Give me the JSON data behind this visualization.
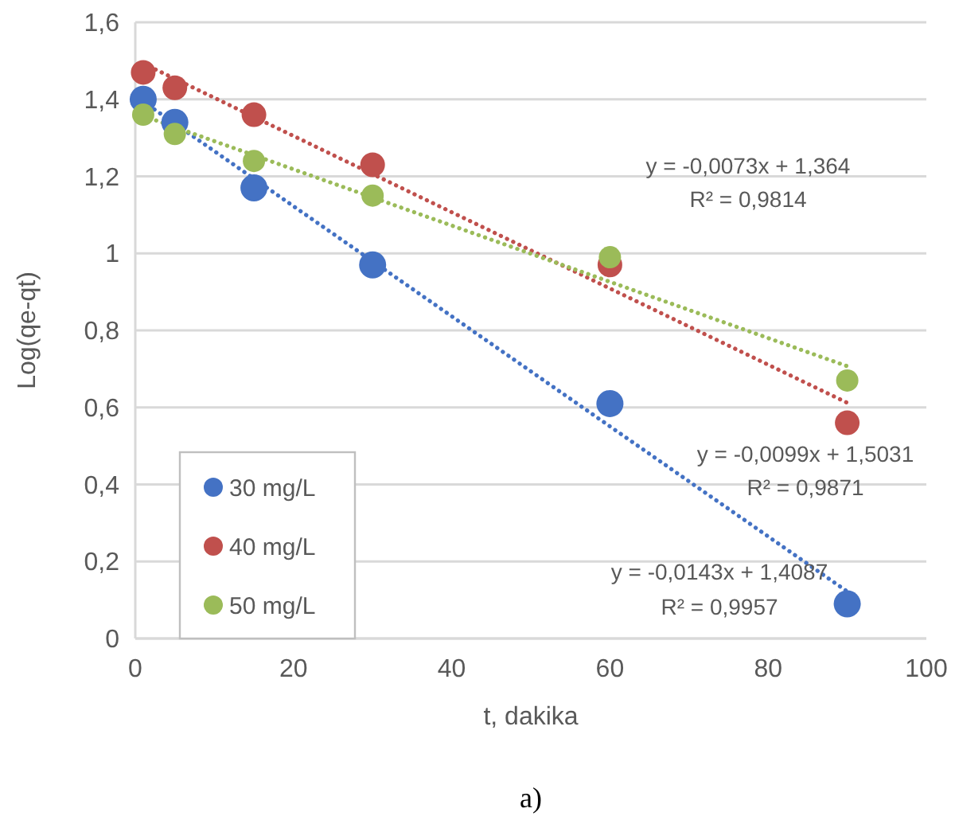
{
  "chart_data": {
    "type": "scatter",
    "xlabel": "t, dakika",
    "ylabel": "Log(qe-qt)",
    "xlim": [
      0,
      100
    ],
    "xticks": [
      0,
      20,
      40,
      60,
      80,
      100
    ],
    "ylim": [
      0,
      1.6
    ],
    "yticks": [
      0,
      {
        "value": 0.2,
        "label": "0,2"
      },
      {
        "value": 0.4,
        "label": "0,4"
      },
      {
        "value": 0.6,
        "label": "0,6"
      },
      {
        "value": 0.8,
        "label": "0,8"
      },
      1,
      {
        "value": 1.2,
        "label": "1,2"
      },
      {
        "value": 1.4,
        "label": "1,4"
      },
      {
        "value": 1.6,
        "label": "1,6"
      }
    ],
    "grid": "y",
    "legend": "bottom left",
    "marker": "circle",
    "series": [
      {
        "name": "30 mg/L",
        "color": "#4472c4",
        "x": [
          1,
          5,
          15,
          30,
          60,
          90
        ],
        "values": [
          1.4,
          1.34,
          1.17,
          0.97,
          0.61,
          0.09
        ]
      },
      {
        "name": "40 mg/L",
        "color": "#c0504d",
        "x": [
          1,
          5,
          15,
          30,
          60,
          90
        ],
        "values": [
          1.47,
          1.43,
          1.36,
          1.23,
          0.97,
          0.56
        ]
      },
      {
        "name": "50 mg/L",
        "color": "#9bbb59",
        "x": [
          1,
          5,
          15,
          30,
          60,
          90
        ],
        "values": [
          1.36,
          1.31,
          1.24,
          1.15,
          0.99,
          0.67
        ]
      },
      {
        "type": "line",
        "line_style": "dotted",
        "marker": "none",
        "color": "#4472c4",
        "x": [
          1,
          90
        ],
        "values": [
          1.394,
          0.122
        ]
      },
      {
        "type": "line",
        "line_style": "dotted",
        "marker": "none",
        "color": "#c0504d",
        "x": [
          1,
          90
        ],
        "values": [
          1.493,
          0.612
        ]
      },
      {
        "type": "line",
        "line_style": "dotted",
        "marker": "none",
        "color": "#9bbb59",
        "x": [
          1,
          90
        ],
        "values": [
          1.357,
          0.707
        ]
      }
    ],
    "annotations": [
      "y = -0,0073x + 1,364",
      "R² = 0,9814",
      "y = -0,0099x + 1,5031",
      "R² = 0,9871",
      "y = -0,0143x + 1,4087",
      "R² = 0,9957",
      "a)"
    ]
  }
}
